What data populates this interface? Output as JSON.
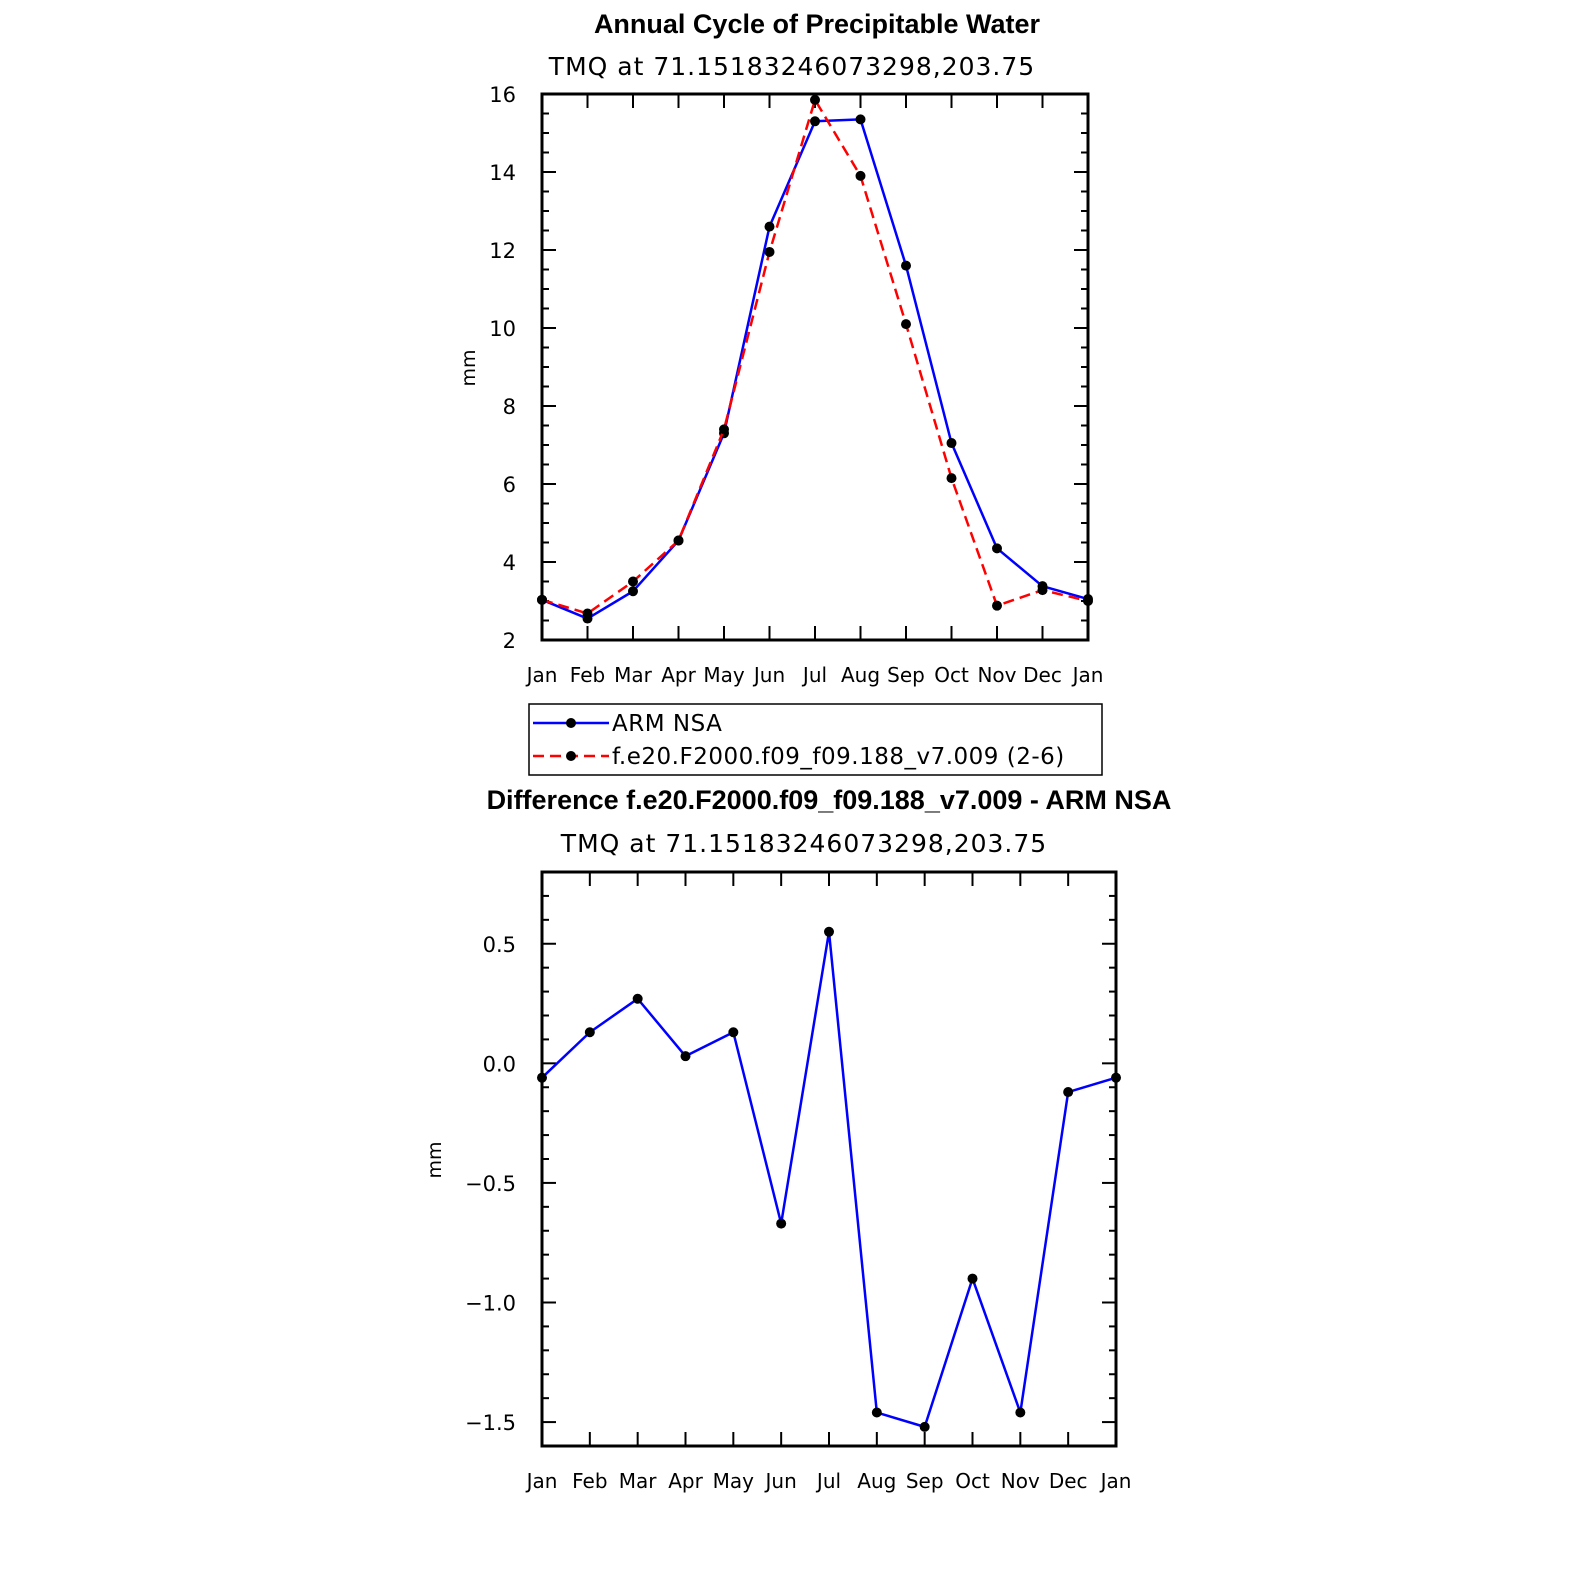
{
  "chart_data": [
    {
      "type": "line",
      "title": "Annual Cycle of Precipitable Water",
      "subtitle": "TMQ at 71.15183246073298,203.75",
      "xlabel": "",
      "ylabel": "mm",
      "categories": [
        "Jan",
        "Feb",
        "Mar",
        "Apr",
        "May",
        "Jun",
        "Jul",
        "Aug",
        "Sep",
        "Oct",
        "Nov",
        "Dec",
        "Jan"
      ],
      "ylim": [
        2,
        16
      ],
      "yticks": [
        "2",
        "4",
        "6",
        "8",
        "10",
        "12",
        "14",
        "16"
      ],
      "grid": false,
      "legend_position": "below",
      "series": [
        {
          "name": "ARM NSA",
          "color": "#0000ff",
          "dash": "solid",
          "values": [
            3.03,
            2.55,
            3.25,
            4.55,
            7.3,
            12.6,
            15.3,
            15.35,
            11.6,
            7.05,
            4.35,
            3.38,
            3.05
          ]
        },
        {
          "name": "f.e20.F2000.f09_f09.188_v7.009 (2-6)",
          "color": "#ff0000",
          "dash": "dashed",
          "values": [
            3.03,
            2.68,
            3.5,
            4.55,
            7.4,
            11.95,
            15.85,
            13.9,
            10.1,
            6.15,
            2.88,
            3.28,
            3.0
          ]
        }
      ]
    },
    {
      "type": "line",
      "title": "Difference f.e20.F2000.f09_f09.188_v7.009 - ARM NSA",
      "subtitle": "TMQ at 71.15183246073298,203.75",
      "xlabel": "",
      "ylabel": "mm",
      "categories": [
        "Jan",
        "Feb",
        "Mar",
        "Apr",
        "May",
        "Jun",
        "Jul",
        "Aug",
        "Sep",
        "Oct",
        "Nov",
        "Dec",
        "Jan"
      ],
      "ylim": [
        -1.6,
        0.8
      ],
      "yticks": [
        "0.5",
        "0.0",
        "−0.5",
        "−1.0",
        "−1.5"
      ],
      "grid": false,
      "series": [
        {
          "color": "#0000ff",
          "dash": "solid",
          "values": [
            -0.06,
            0.13,
            0.27,
            0.03,
            0.13,
            -0.67,
            0.55,
            -1.46,
            -1.52,
            -0.9,
            -1.46,
            -0.12,
            -0.06
          ]
        }
      ]
    }
  ]
}
